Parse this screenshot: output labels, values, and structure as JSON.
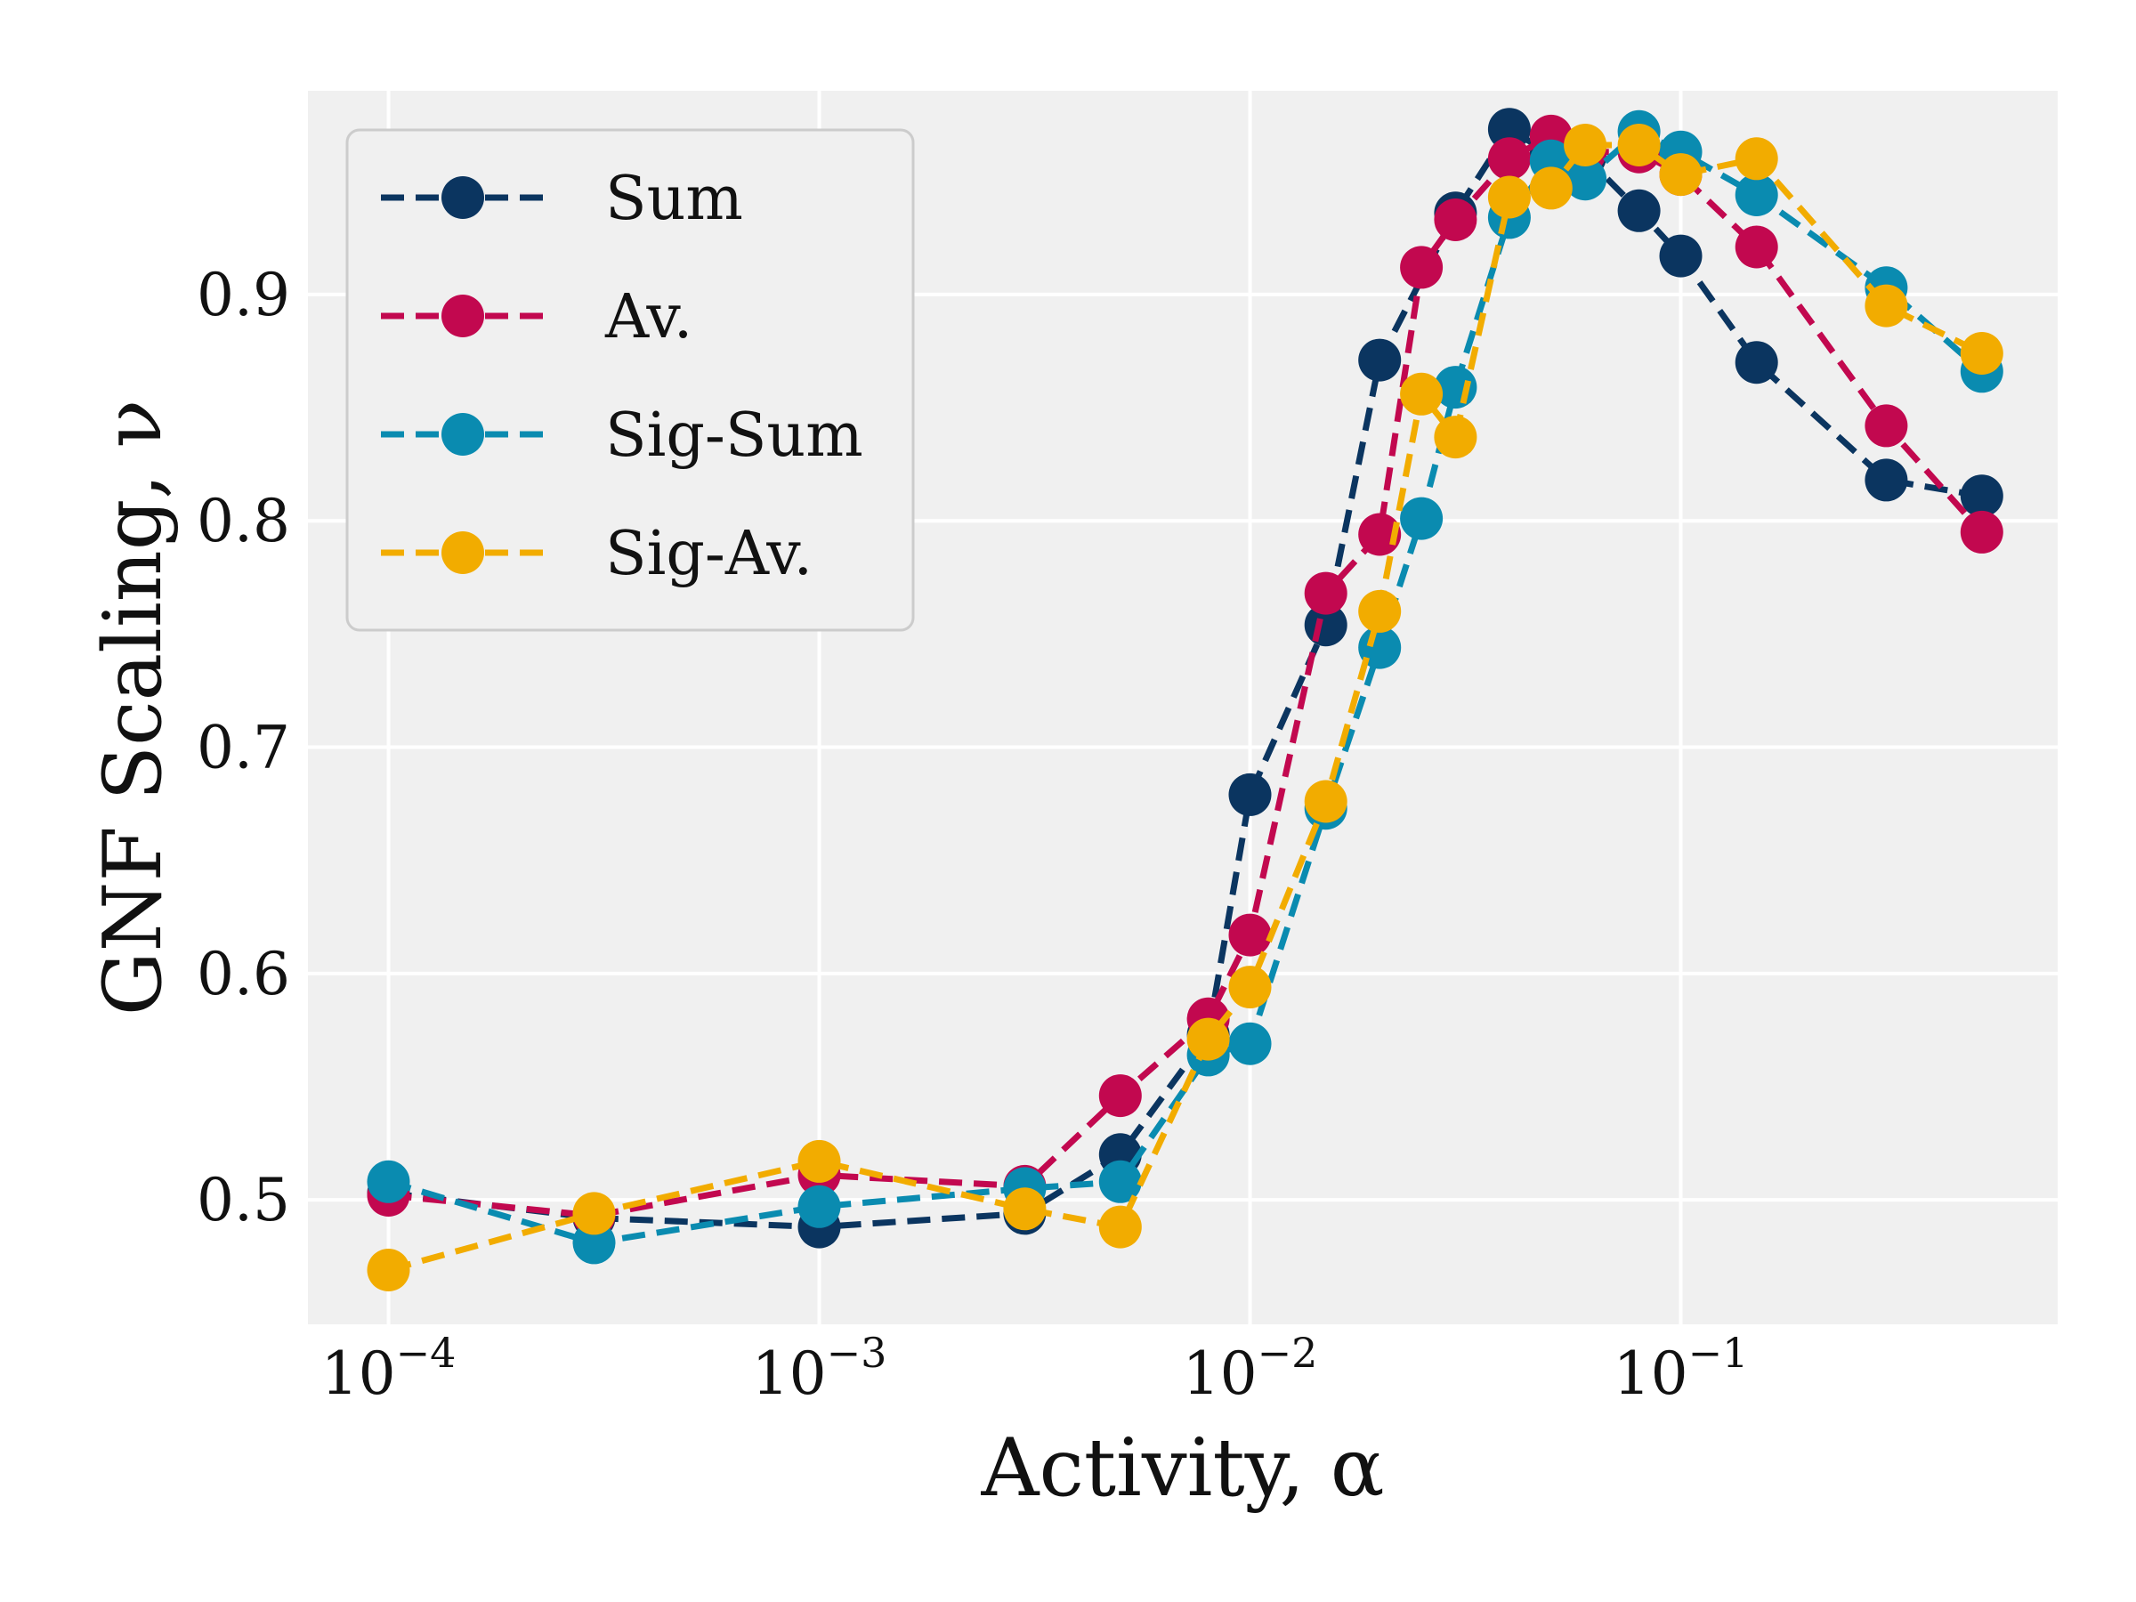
{
  "chart_data": {
    "type": "line",
    "xlabel": "Activity, α",
    "ylabel": "GNF Scaling, ν",
    "xscale": "log",
    "xlim": [
      6.5e-05,
      0.75
    ],
    "ylim": [
      0.445,
      0.99
    ],
    "xticks": [
      {
        "value": 0.0001,
        "base": "10",
        "exp": "−4"
      },
      {
        "value": 0.001,
        "base": "10",
        "exp": "−3"
      },
      {
        "value": 0.01,
        "base": "10",
        "exp": "−2"
      },
      {
        "value": 0.1,
        "base": "10",
        "exp": "−1"
      }
    ],
    "yticks": [
      {
        "value": 0.5,
        "label": "0.5"
      },
      {
        "value": 0.6,
        "label": "0.6"
      },
      {
        "value": 0.7,
        "label": "0.7"
      },
      {
        "value": 0.8,
        "label": "0.8"
      },
      {
        "value": 0.9,
        "label": "0.9"
      }
    ],
    "grid": true,
    "legend_position": "top-left",
    "background": "#f0f0f0",
    "series": [
      {
        "name": "Sum",
        "color": "#0b3560",
        "points": [
          [
            0.0001,
            0.503
          ],
          [
            0.0003,
            0.492
          ],
          [
            0.001,
            0.488
          ],
          [
            0.003,
            0.494
          ],
          [
            0.005,
            0.52
          ],
          [
            0.008,
            0.573
          ],
          [
            0.01,
            0.679
          ],
          [
            0.015,
            0.754
          ],
          [
            0.02,
            0.871
          ],
          [
            0.03,
            0.936
          ],
          [
            0.04,
            0.973
          ],
          [
            0.05,
            0.962
          ],
          [
            0.06,
            0.961
          ],
          [
            0.08,
            0.937
          ],
          [
            0.1,
            0.917
          ],
          [
            0.15,
            0.87
          ],
          [
            0.3,
            0.818
          ],
          [
            0.5,
            0.811
          ]
        ]
      },
      {
        "name": "Av.",
        "color": "#c2084f",
        "points": [
          [
            0.0001,
            0.502
          ],
          [
            0.0003,
            0.493
          ],
          [
            0.001,
            0.511
          ],
          [
            0.003,
            0.506
          ],
          [
            0.005,
            0.546
          ],
          [
            0.008,
            0.58
          ],
          [
            0.01,
            0.617
          ],
          [
            0.015,
            0.768
          ],
          [
            0.02,
            0.794
          ],
          [
            0.025,
            0.912
          ],
          [
            0.03,
            0.933
          ],
          [
            0.04,
            0.96
          ],
          [
            0.05,
            0.97
          ],
          [
            0.06,
            0.963
          ],
          [
            0.08,
            0.963
          ],
          [
            0.1,
            0.953
          ],
          [
            0.15,
            0.921
          ],
          [
            0.3,
            0.842
          ],
          [
            0.5,
            0.795
          ]
        ]
      },
      {
        "name": "Sig-Sum",
        "color": "#0a8bb0",
        "points": [
          [
            0.0001,
            0.508
          ],
          [
            0.0003,
            0.481
          ],
          [
            0.001,
            0.497
          ],
          [
            0.003,
            0.505
          ],
          [
            0.005,
            0.508
          ],
          [
            0.008,
            0.564
          ],
          [
            0.01,
            0.569
          ],
          [
            0.015,
            0.673
          ],
          [
            0.02,
            0.744
          ],
          [
            0.025,
            0.801
          ],
          [
            0.03,
            0.859
          ],
          [
            0.04,
            0.934
          ],
          [
            0.05,
            0.959
          ],
          [
            0.06,
            0.951
          ],
          [
            0.08,
            0.972
          ],
          [
            0.1,
            0.963
          ],
          [
            0.15,
            0.944
          ],
          [
            0.3,
            0.903
          ],
          [
            0.5,
            0.866
          ]
        ]
      },
      {
        "name": "Sig-Av.",
        "color": "#f2ac00",
        "points": [
          [
            0.0001,
            0.469
          ],
          [
            0.0003,
            0.494
          ],
          [
            0.001,
            0.517
          ],
          [
            0.003,
            0.496
          ],
          [
            0.005,
            0.488
          ],
          [
            0.008,
            0.571
          ],
          [
            0.01,
            0.594
          ],
          [
            0.015,
            0.676
          ],
          [
            0.02,
            0.76
          ],
          [
            0.025,
            0.856
          ],
          [
            0.03,
            0.837
          ],
          [
            0.04,
            0.943
          ],
          [
            0.05,
            0.947
          ],
          [
            0.06,
            0.966
          ],
          [
            0.08,
            0.966
          ],
          [
            0.1,
            0.953
          ],
          [
            0.15,
            0.96
          ],
          [
            0.3,
            0.895
          ],
          [
            0.5,
            0.874
          ]
        ]
      }
    ]
  }
}
